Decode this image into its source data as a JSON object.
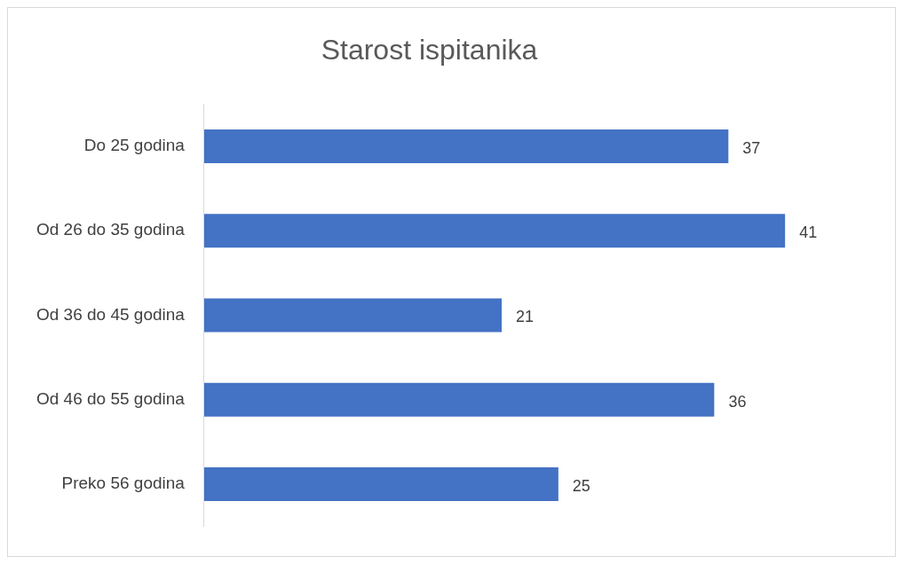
{
  "chart_data": {
    "type": "bar",
    "title": "Starost ispitanika",
    "orientation": "horizontal",
    "categories": [
      "Do 25 godina",
      "Od 26 do 35 godina",
      "Od 36 do 45 godina",
      "Od 46 do 55 godina",
      "Preko 56 godina"
    ],
    "values": [
      37,
      41,
      21,
      36,
      25
    ],
    "color": "#4472c4",
    "data_labels": true,
    "legend": false,
    "tick_labels": "y"
  }
}
